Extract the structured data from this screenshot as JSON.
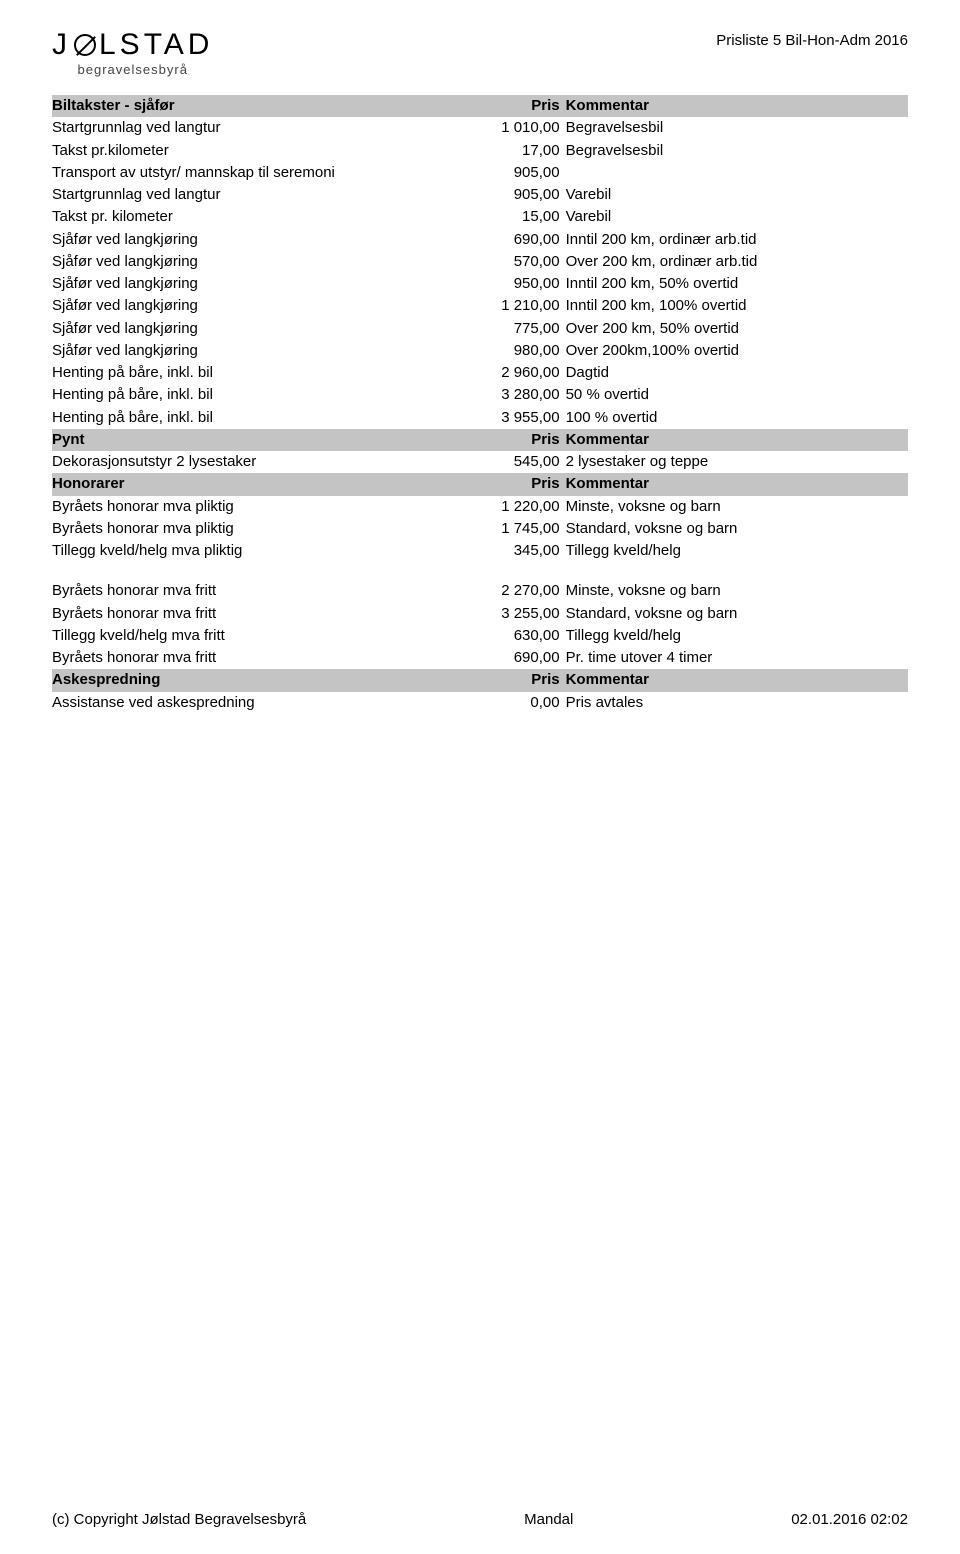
{
  "header": {
    "logo_main": "JØLSTAD",
    "logo_sub": "begravelsesbyrå",
    "doc_title": "Prisliste 5 Bil-Hon-Adm 2016"
  },
  "blocks": [
    {
      "type": "section",
      "desc": "Biltakster - sjåfør",
      "price_label": "Pris",
      "comment_label": "Kommentar"
    },
    {
      "type": "row",
      "desc": "Startgrunnlag ved langtur",
      "price": "1 010,00",
      "comment": "Begravelsesbil"
    },
    {
      "type": "row",
      "desc": "Takst pr.kilometer",
      "price": "17,00",
      "comment": "Begravelsesbil"
    },
    {
      "type": "row",
      "desc": "Transport av utstyr/ mannskap til seremoni",
      "price": "905,00",
      "comment": ""
    },
    {
      "type": "row",
      "desc": "Startgrunnlag ved langtur",
      "price": "905,00",
      "comment": "Varebil"
    },
    {
      "type": "row",
      "desc": "Takst pr. kilometer",
      "price": "15,00",
      "comment": "Varebil"
    },
    {
      "type": "row",
      "desc": "Sjåfør ved langkjøring",
      "price": "690,00",
      "comment": "Inntil 200 km, ordinær arb.tid"
    },
    {
      "type": "row",
      "desc": "Sjåfør ved langkjøring",
      "price": "570,00",
      "comment": "Over 200 km, ordinær arb.tid"
    },
    {
      "type": "row",
      "desc": "Sjåfør ved langkjøring",
      "price": "950,00",
      "comment": "Inntil 200 km, 50% overtid"
    },
    {
      "type": "row",
      "desc": "Sjåfør ved langkjøring",
      "price": "1 210,00",
      "comment": "Inntil 200 km, 100% overtid"
    },
    {
      "type": "row",
      "desc": "Sjåfør ved langkjøring",
      "price": "775,00",
      "comment": "Over 200 km, 50% overtid"
    },
    {
      "type": "row",
      "desc": "Sjåfør ved langkjøring",
      "price": "980,00",
      "comment": "Over 200km,100% overtid"
    },
    {
      "type": "row",
      "desc": "Henting på båre, inkl. bil",
      "price": "2 960,00",
      "comment": "Dagtid"
    },
    {
      "type": "row",
      "desc": "Henting på båre, inkl. bil",
      "price": "3 280,00",
      "comment": "50 % overtid"
    },
    {
      "type": "row",
      "desc": "Henting på båre, inkl. bil",
      "price": "3 955,00",
      "comment": "100 % overtid"
    },
    {
      "type": "section",
      "desc": "Pynt",
      "price_label": "Pris",
      "comment_label": "Kommentar"
    },
    {
      "type": "row",
      "desc": "Dekorasjonsutstyr 2 lysestaker",
      "price": "545,00",
      "comment": "2 lysestaker og teppe"
    },
    {
      "type": "section",
      "desc": "Honorarer",
      "price_label": "Pris",
      "comment_label": "Kommentar"
    },
    {
      "type": "row",
      "desc": "Byråets honorar mva pliktig",
      "price": "1 220,00",
      "comment": "Minste, voksne og barn"
    },
    {
      "type": "row",
      "desc": "Byråets honorar mva pliktig",
      "price": "1 745,00",
      "comment": "Standard, voksne og barn"
    },
    {
      "type": "row",
      "desc": "Tillegg kveld/helg mva pliktig",
      "price": "345,00",
      "comment": "Tillegg kveld/helg"
    },
    {
      "type": "spacer"
    },
    {
      "type": "row",
      "desc": "Byråets honorar mva fritt",
      "price": "2 270,00",
      "comment": "Minste, voksne og barn"
    },
    {
      "type": "row",
      "desc": "Byråets honorar mva fritt",
      "price": "3 255,00",
      "comment": "Standard, voksne og barn"
    },
    {
      "type": "row",
      "desc": "Tillegg kveld/helg mva fritt",
      "price": "630,00",
      "comment": "Tillegg kveld/helg"
    },
    {
      "type": "row",
      "desc": "Byråets honorar mva fritt",
      "price": "690,00",
      "comment": "Pr. time utover 4 timer"
    },
    {
      "type": "section",
      "desc": "Askespredning",
      "price_label": "Pris",
      "comment_label": "Kommentar"
    },
    {
      "type": "row",
      "desc": "Assistanse ved askespredning",
      "price": "0,00",
      "comment": "Pris avtales"
    }
  ],
  "footer": {
    "left": "(c) Copyright Jølstad Begravelsesbyrå",
    "center": "Mandal",
    "right": "02.01.2016 02:02"
  }
}
